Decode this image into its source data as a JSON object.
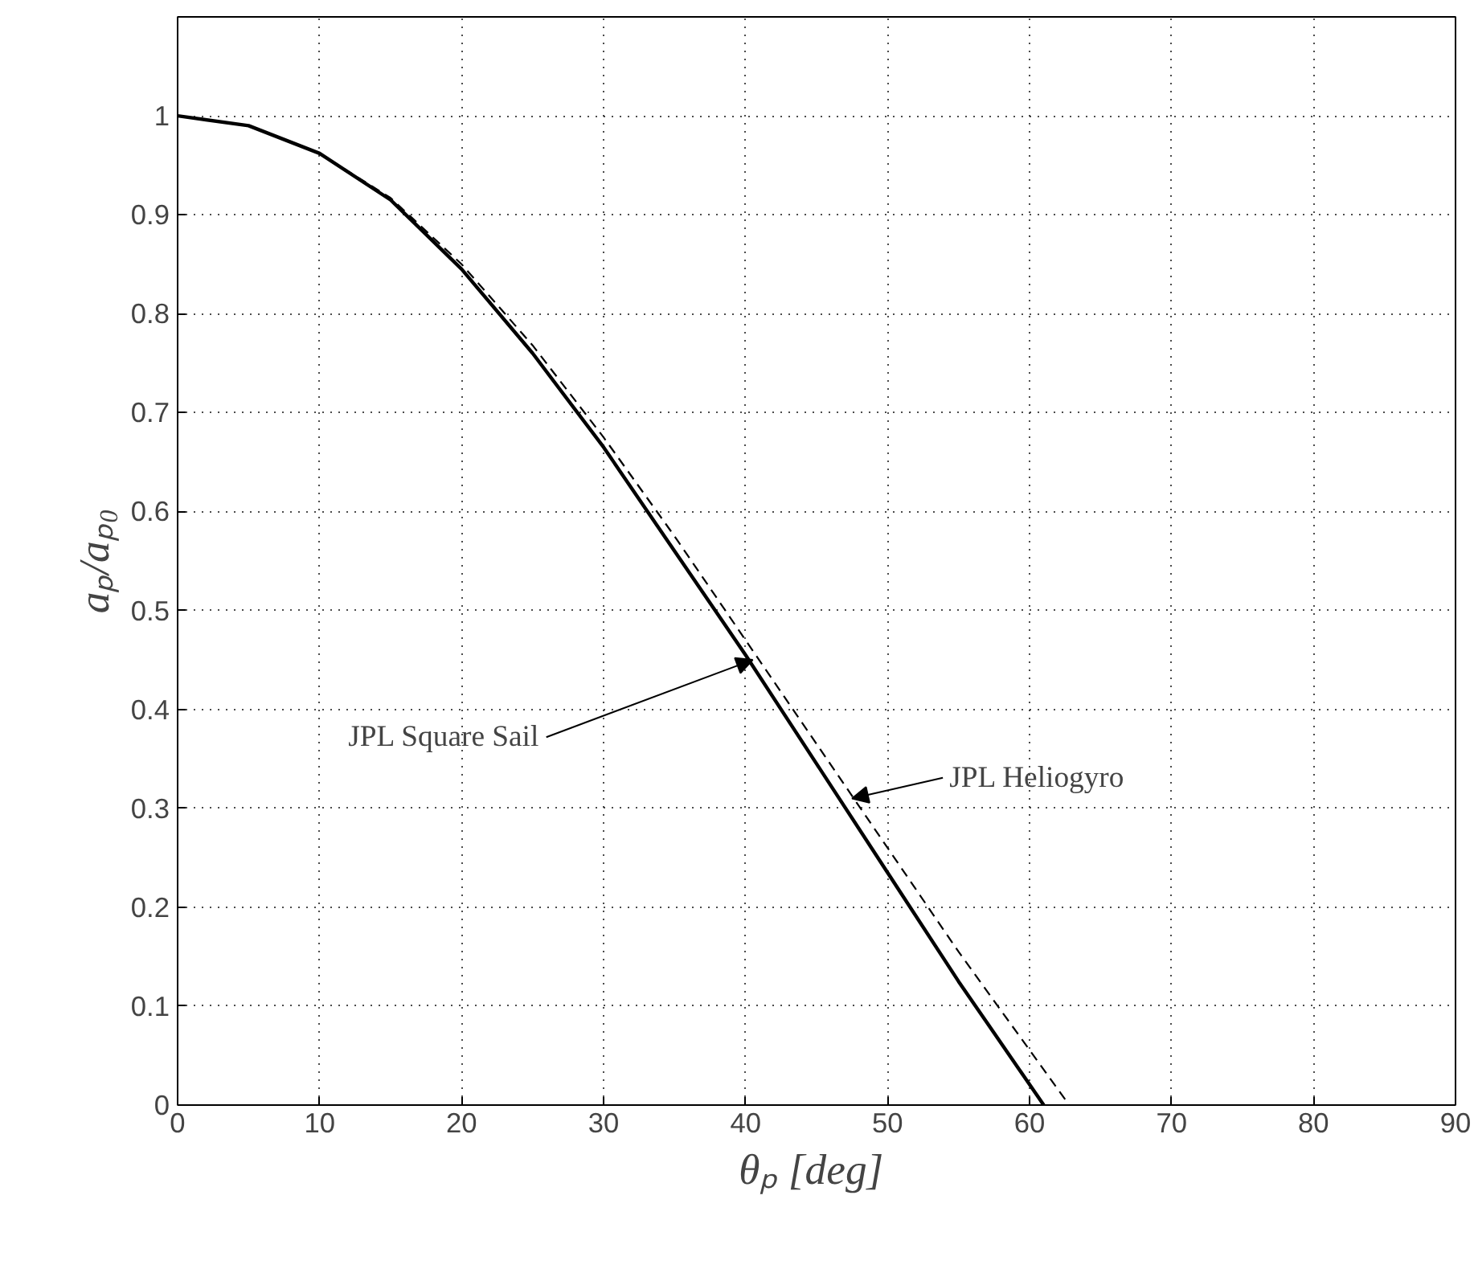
{
  "chart_data": {
    "type": "line",
    "xlabel": "θₚ  [deg]",
    "ylabel": "aₚ/aₚ₀",
    "xlim": [
      0,
      90
    ],
    "ylim": [
      0,
      1.1
    ],
    "xticks": [
      0,
      10,
      20,
      30,
      40,
      50,
      60,
      70,
      80,
      90
    ],
    "yticks": [
      0,
      0.1,
      0.2,
      0.3,
      0.4,
      0.5,
      0.6,
      0.7,
      0.8,
      0.9,
      1
    ],
    "grid": true,
    "marker": "none",
    "series": [
      {
        "color": "#000000",
        "line_style": "solid",
        "x": [
          0,
          5,
          10,
          15,
          20,
          25,
          30,
          35,
          40,
          45,
          50,
          55,
          61
        ],
        "values": [
          1,
          0.99,
          0.962,
          0.915,
          0.845,
          0.76,
          0.665,
          0.56,
          0.455,
          0.345,
          0.235,
          0.125,
          0
        ]
      },
      {
        "color": "#000000",
        "line_style": "dashed",
        "x": [
          0,
          5,
          10,
          15,
          20,
          25,
          30,
          35,
          40,
          45,
          50,
          55,
          62.8
        ],
        "values": [
          1,
          0.99,
          0.962,
          0.917,
          0.85,
          0.768,
          0.675,
          0.575,
          0.47,
          0.365,
          0.26,
          0.155,
          0
        ]
      }
    ],
    "annotations": [
      {
        "text": "JPL Square Sail",
        "x": 40.5,
        "y": 0.45
      },
      {
        "text": "JPL Heliogyro",
        "x": 47.5,
        "y": 0.31
      }
    ]
  }
}
